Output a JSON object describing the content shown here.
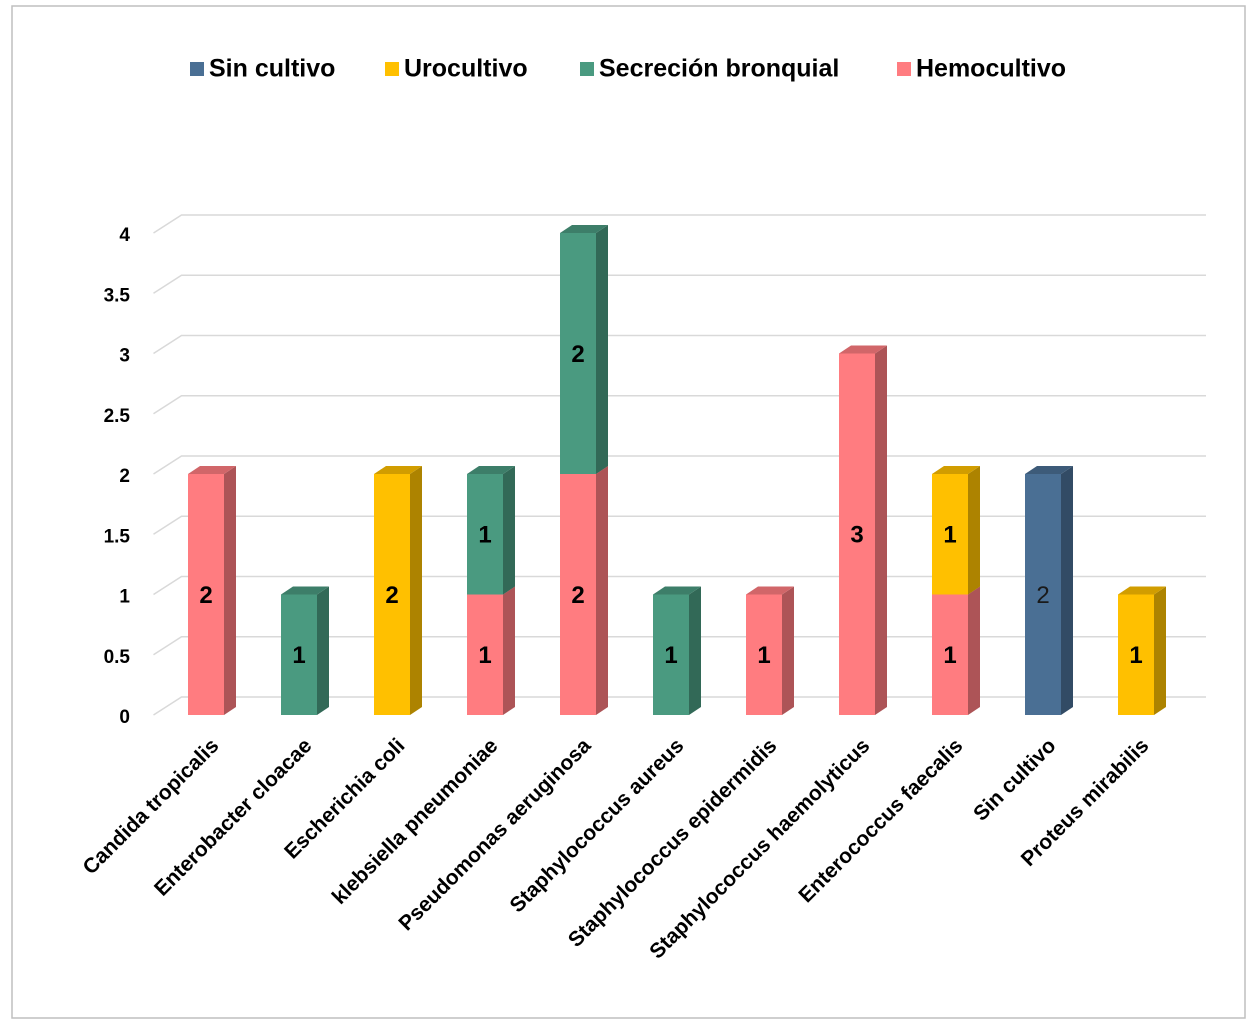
{
  "chart_data": {
    "type": "bar3d_stacked",
    "categories": [
      "Candida tropicalis",
      "Enterobacter cloacae",
      "Escherichia coli",
      "klebsiella pneumoniae",
      "Pseudomonas aeruginosa",
      "Staphylococcus aureus",
      "Staphylococcus epidermidis",
      "Staphylococcus haemolyticus",
      "Enterococcus faecalis",
      "Sin cultivo",
      "Proteus mirabilis"
    ],
    "series": [
      {
        "name": "Sin cultivo",
        "color": "#4a6f94",
        "values": [
          null,
          null,
          null,
          null,
          null,
          null,
          null,
          null,
          null,
          2,
          null
        ]
      },
      {
        "name": "Urocultivo",
        "color": "#ffc000",
        "values": [
          null,
          null,
          2,
          null,
          null,
          null,
          null,
          null,
          1,
          null,
          1
        ]
      },
      {
        "name": "Secreción bronquial",
        "color": "#4a9a80",
        "values": [
          null,
          1,
          null,
          1,
          2,
          1,
          null,
          null,
          null,
          null,
          null
        ]
      },
      {
        "name": "Hemocultivo",
        "color": "#ff7c80",
        "values": [
          2,
          null,
          null,
          1,
          2,
          null,
          1,
          3,
          1,
          null,
          null
        ]
      }
    ],
    "ylim": [
      0,
      4
    ],
    "yticks": [
      0,
      0.5,
      1,
      1.5,
      2,
      2.5,
      3,
      3.5,
      4
    ],
    "grid": true,
    "legend": "top"
  }
}
